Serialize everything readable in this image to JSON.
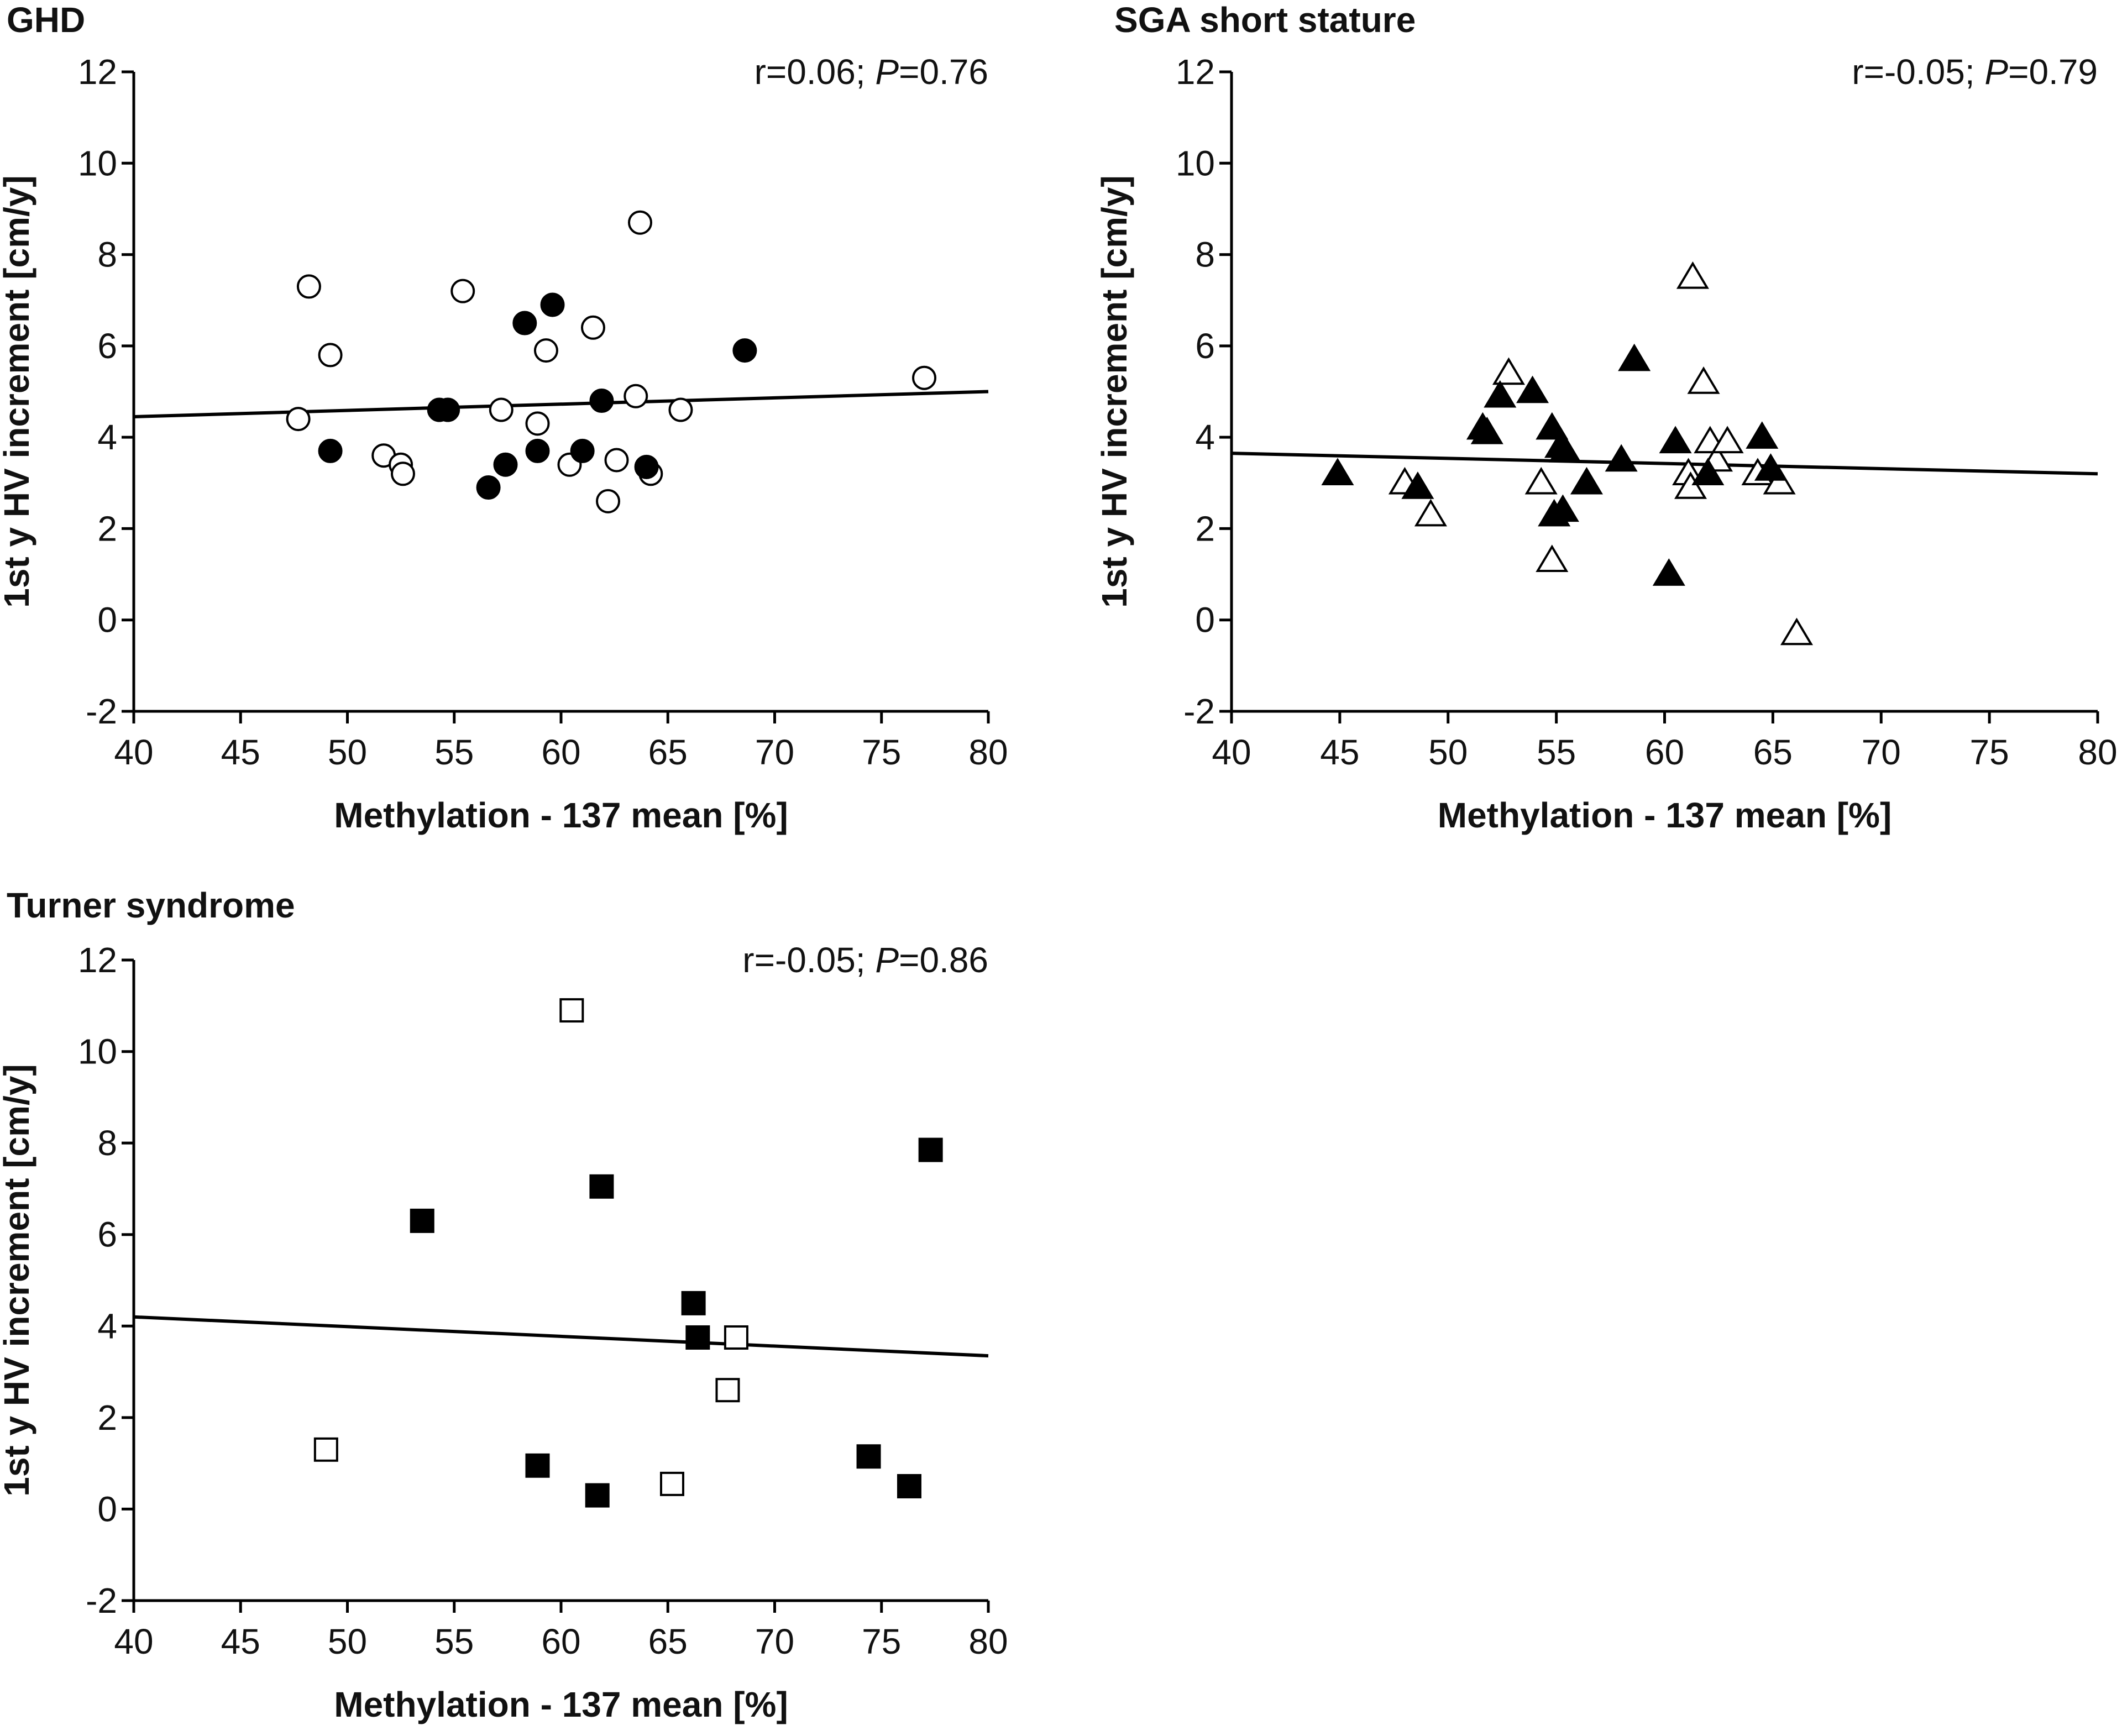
{
  "chart_data": [
    {
      "type": "scatter",
      "id": "ghd",
      "title": "GHD",
      "xlabel": "Methylation - 137 mean [%]",
      "ylabel": "1st y HV increment [cm/y]",
      "xlim": [
        40,
        80
      ],
      "ylim": [
        -2,
        12
      ],
      "xticks": [
        40,
        45,
        50,
        55,
        60,
        65,
        70,
        75,
        80
      ],
      "yticks": [
        -2,
        0,
        2,
        4,
        6,
        8,
        10,
        12
      ],
      "stat": {
        "r_text": "r=0.06; ",
        "p_symbol": "P",
        "p_value": "=0.76"
      },
      "regression": {
        "x1": 40,
        "y1": 4.45,
        "x2": 80,
        "y2": 5.0
      },
      "series": [
        {
          "name": "open",
          "marker": "circle",
          "filled": false,
          "points": [
            [
              48.2,
              7.3
            ],
            [
              49.2,
              5.8
            ],
            [
              47.7,
              4.4
            ],
            [
              51.7,
              3.6
            ],
            [
              52.5,
              3.4
            ],
            [
              52.6,
              3.2
            ],
            [
              55.4,
              7.2
            ],
            [
              57.2,
              4.6
            ],
            [
              58.9,
              4.3
            ],
            [
              59.3,
              5.9
            ],
            [
              60.4,
              3.4
            ],
            [
              61.5,
              6.4
            ],
            [
              62.2,
              2.6
            ],
            [
              62.6,
              3.5
            ],
            [
              63.5,
              4.9
            ],
            [
              63.7,
              8.7
            ],
            [
              64.2,
              3.2
            ],
            [
              65.6,
              4.6
            ],
            [
              77.0,
              5.3
            ]
          ]
        },
        {
          "name": "filled",
          "marker": "circle",
          "filled": true,
          "points": [
            [
              49.2,
              3.7
            ],
            [
              54.3,
              4.6
            ],
            [
              54.7,
              4.6
            ],
            [
              56.6,
              2.9
            ],
            [
              57.4,
              3.4
            ],
            [
              58.3,
              6.5
            ],
            [
              58.9,
              3.7
            ],
            [
              59.6,
              6.9
            ],
            [
              61.0,
              3.7
            ],
            [
              61.9,
              4.8
            ],
            [
              64.0,
              3.35
            ],
            [
              68.6,
              5.9
            ]
          ]
        }
      ]
    },
    {
      "type": "scatter",
      "id": "sga",
      "title": "SGA short stature",
      "xlabel": "Methylation - 137 mean [%]",
      "ylabel": "1st y HV increment [cm/y]",
      "xlim": [
        40,
        80
      ],
      "ylim": [
        -2,
        12
      ],
      "xticks": [
        40,
        45,
        50,
        55,
        60,
        65,
        70,
        75,
        80
      ],
      "yticks": [
        -2,
        0,
        2,
        4,
        6,
        8,
        10,
        12
      ],
      "stat": {
        "r_text": "r=-0.05; ",
        "p_symbol": "P",
        "p_value": "=0.79"
      },
      "regression": {
        "x1": 40,
        "y1": 3.65,
        "x2": 80,
        "y2": 3.2
      },
      "series": [
        {
          "name": "open",
          "marker": "triangle",
          "filled": false,
          "points": [
            [
              48.0,
              3.0
            ],
            [
              49.2,
              2.3
            ],
            [
              52.8,
              5.4
            ],
            [
              54.3,
              3.0
            ],
            [
              54.8,
              1.3
            ],
            [
              61.1,
              3.2
            ],
            [
              61.2,
              2.9
            ],
            [
              61.3,
              7.5
            ],
            [
              61.8,
              5.2
            ],
            [
              62.1,
              3.9
            ],
            [
              62.4,
              3.5
            ],
            [
              62.9,
              3.9
            ],
            [
              64.3,
              3.2
            ],
            [
              65.3,
              3.0
            ],
            [
              66.1,
              -0.3
            ]
          ]
        },
        {
          "name": "filled",
          "marker": "triangle",
          "filled": true,
          "points": [
            [
              44.9,
              3.2
            ],
            [
              48.6,
              2.9
            ],
            [
              51.6,
              4.2
            ],
            [
              51.8,
              4.1
            ],
            [
              52.4,
              4.9
            ],
            [
              53.9,
              5.0
            ],
            [
              54.8,
              4.2
            ],
            [
              54.9,
              2.3
            ],
            [
              55.2,
              3.8
            ],
            [
              55.3,
              2.4
            ],
            [
              55.4,
              3.7
            ],
            [
              56.4,
              3.0
            ],
            [
              58.0,
              3.5
            ],
            [
              58.6,
              5.7
            ],
            [
              60.2,
              1.0
            ],
            [
              60.5,
              3.9
            ],
            [
              62.0,
              3.2
            ],
            [
              64.5,
              4.0
            ],
            [
              64.9,
              3.3
            ]
          ]
        }
      ]
    },
    {
      "type": "scatter",
      "id": "turner",
      "title": "Turner syndrome",
      "xlabel": "Methylation - 137 mean [%]",
      "ylabel": "1st y HV increment [cm/y]",
      "xlim": [
        40,
        80
      ],
      "ylim": [
        -2,
        12
      ],
      "xticks": [
        40,
        45,
        50,
        55,
        60,
        65,
        70,
        75,
        80
      ],
      "yticks": [
        -2,
        0,
        2,
        4,
        6,
        8,
        10,
        12
      ],
      "stat": {
        "r_text": "r=-0.05; ",
        "p_symbol": "P",
        "p_value": "=0.86"
      },
      "regression": {
        "x1": 40,
        "y1": 4.2,
        "x2": 80,
        "y2": 3.35
      },
      "series": [
        {
          "name": "open",
          "marker": "square",
          "filled": false,
          "points": [
            [
              49.0,
              1.3
            ],
            [
              60.5,
              10.9
            ],
            [
              65.2,
              0.55
            ],
            [
              67.8,
              2.6
            ],
            [
              68.2,
              3.75
            ]
          ]
        },
        {
          "name": "filled",
          "marker": "square",
          "filled": true,
          "points": [
            [
              53.5,
              6.3
            ],
            [
              58.9,
              0.95
            ],
            [
              61.7,
              0.3
            ],
            [
              61.9,
              7.05
            ],
            [
              66.2,
              4.5
            ],
            [
              66.4,
              3.75
            ],
            [
              74.4,
              1.15
            ],
            [
              76.3,
              0.5
            ],
            [
              77.3,
              7.85
            ]
          ]
        }
      ]
    }
  ]
}
